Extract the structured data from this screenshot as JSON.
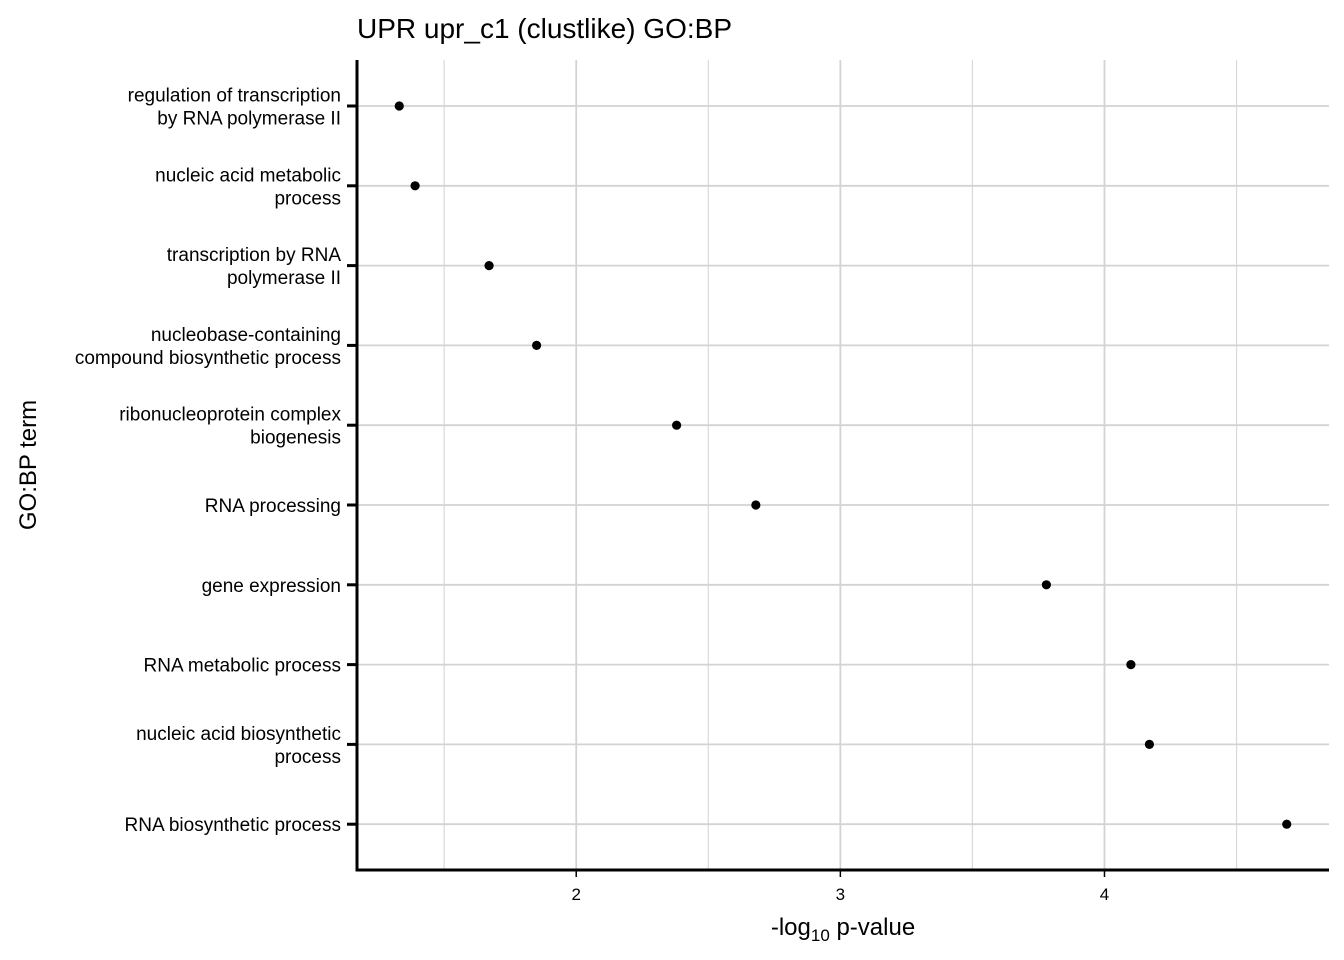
{
  "chart_data": {
    "type": "scatter",
    "title": "UPR upr_c1 (clustlike) GO:BP",
    "xlabel": "-log10 p-value",
    "xlabel_parts": {
      "prefix": "-log",
      "subscript": "10",
      "suffix": " p-value"
    },
    "ylabel": "GO:BP term",
    "xlim": [
      1.17,
      4.85
    ],
    "x_ticks": [
      2,
      3,
      4
    ],
    "x_minor_ticks": [
      1.5,
      2.5,
      3.5,
      4.5
    ],
    "grid": true,
    "point_color": "#000000",
    "points": [
      {
        "term": [
          "regulation of transcription",
          "by RNA polymerase II"
        ],
        "x": 1.33
      },
      {
        "term": [
          "nucleic acid metabolic",
          "process"
        ],
        "x": 1.39
      },
      {
        "term": [
          "transcription by RNA",
          "polymerase II"
        ],
        "x": 1.67
      },
      {
        "term": [
          "nucleobase-containing",
          "compound biosynthetic process"
        ],
        "x": 1.85
      },
      {
        "term": [
          "ribonucleoprotein complex",
          "biogenesis"
        ],
        "x": 2.38
      },
      {
        "term": [
          "RNA processing"
        ],
        "x": 2.68
      },
      {
        "term": [
          "gene expression"
        ],
        "x": 3.78
      },
      {
        "term": [
          "RNA metabolic process"
        ],
        "x": 4.1
      },
      {
        "term": [
          "nucleic acid biosynthetic",
          "process"
        ],
        "x": 4.17
      },
      {
        "term": [
          "RNA biosynthetic process"
        ],
        "x": 4.69
      }
    ]
  }
}
